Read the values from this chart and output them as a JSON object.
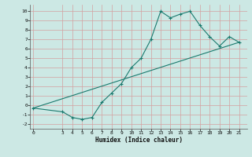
{
  "x": [
    0,
    3,
    4,
    5,
    6,
    7,
    8,
    9,
    10,
    11,
    12,
    13,
    14,
    15,
    16,
    17,
    18,
    19,
    20,
    21
  ],
  "y": [
    -0.3,
    -0.7,
    -1.3,
    -1.5,
    -1.3,
    0.3,
    1.3,
    2.3,
    4.0,
    5.0,
    7.0,
    10.0,
    9.3,
    9.7,
    10.0,
    8.5,
    7.3,
    6.3,
    7.3,
    6.7
  ],
  "line_x": [
    0,
    21
  ],
  "line_y": [
    -0.3,
    6.7
  ],
  "color": "#1a7a6e",
  "bg_color": "#cce8e4",
  "grid_color": "#b8d8d4",
  "xlabel": "Humidex (Indice chaleur)",
  "xlim": [
    -0.3,
    21.8
  ],
  "ylim": [
    -2.5,
    10.7
  ],
  "yticks": [
    -2,
    -1,
    0,
    1,
    2,
    3,
    4,
    5,
    6,
    7,
    8,
    9,
    10
  ],
  "xticks": [
    0,
    3,
    4,
    5,
    6,
    7,
    8,
    9,
    10,
    11,
    12,
    13,
    14,
    15,
    16,
    17,
    18,
    19,
    20,
    21
  ]
}
